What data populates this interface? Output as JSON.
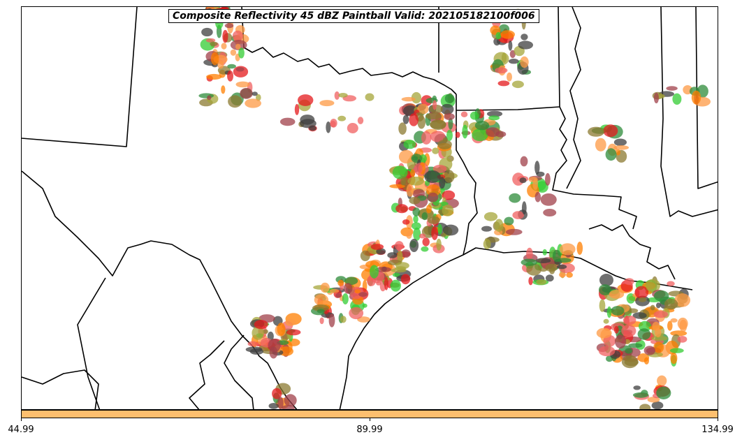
{
  "title": "Composite Reflectivity 45 dBZ Paintball Valid: 202105182100f006",
  "colorbar": {
    "color": "#fdbf6f",
    "ticks": [
      "44.99",
      "89.99",
      "134.99"
    ]
  },
  "colors": {
    "dark_gray": "#3f3f3f",
    "light_green": "#33cc33",
    "green": "#2e8b3a",
    "olive": "#a6a63a",
    "orange_light": "#fd9a44",
    "orange": "#ff7f00",
    "red": "#e41a1c",
    "red_light": "#f06060",
    "brown": "#a0404a",
    "olive_brown": "#8b7a30"
  }
}
